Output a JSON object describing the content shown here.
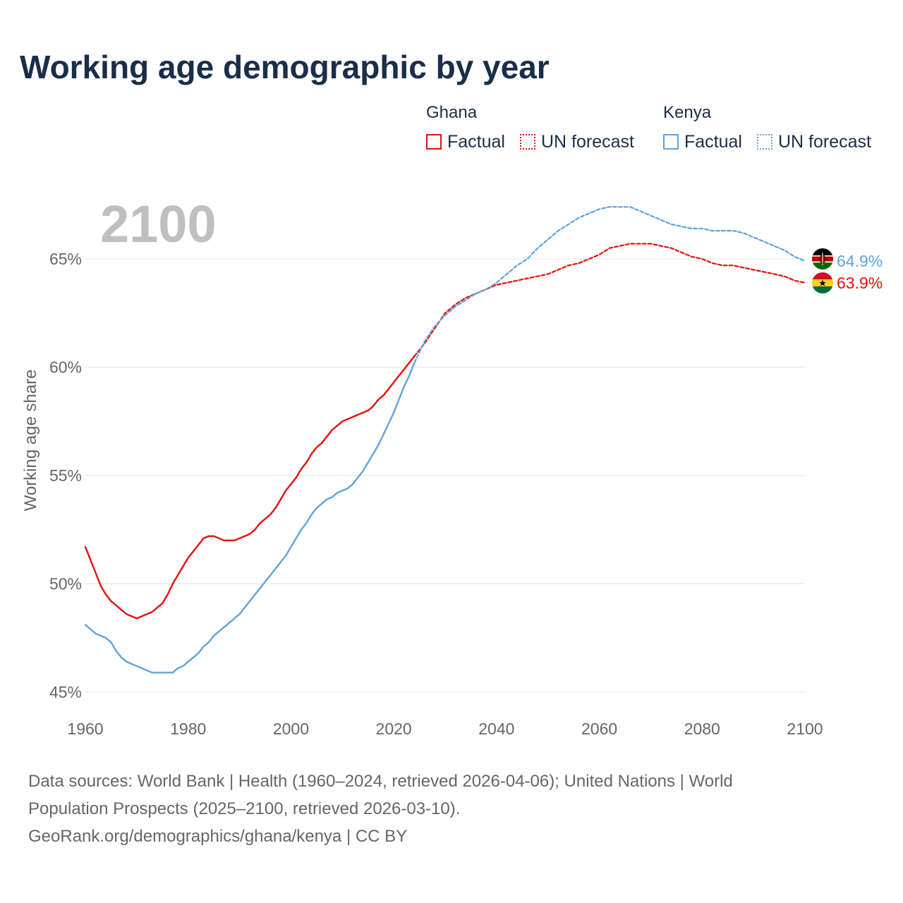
{
  "title": "Working age demographic by year",
  "legend": {
    "ghana_label": "Ghana",
    "kenya_label": "Kenya",
    "factual_label": "Factual",
    "forecast_label": "UN forecast"
  },
  "footer": {
    "line1": "Data sources: World Bank | Health (1960–2024, retrieved 2026-04-06); United Nations | World",
    "line2": "Population Prospects (2025–2100, retrieved 2026-03-10).",
    "line3": "GeoRank.org/demographics/ghana/kenya | CC BY"
  },
  "colors": {
    "ghana": "#e3120b",
    "kenya": "#5fa3e0",
    "title": "#1a2e4a",
    "axis_text": "#666666",
    "grid": "#e6e6e6",
    "year_watermark": "#bfbfbf"
  },
  "chart_data": {
    "type": "line",
    "title": "Working age demographic by year",
    "ylabel": "Working age share",
    "xlabel": "",
    "xlim": [
      1960,
      2100
    ],
    "ylim": [
      45,
      68
    ],
    "x_ticks": [
      1960,
      1980,
      2000,
      2020,
      2040,
      2060,
      2080,
      2100
    ],
    "x_tick_labels": [
      "1960",
      "1980",
      "2000",
      "2020",
      "2040",
      "2060",
      "2080",
      "2100"
    ],
    "y_ticks": [
      45,
      50,
      55,
      60,
      65
    ],
    "y_tick_labels": [
      "45%",
      "50%",
      "55%",
      "60%",
      "65%"
    ],
    "year_watermark": "2100",
    "series": [
      {
        "name": "Ghana",
        "role": "factual",
        "color": "#e3120b",
        "x": [
          1960,
          1961,
          1962,
          1963,
          1964,
          1965,
          1966,
          1967,
          1968,
          1969,
          1970,
          1971,
          1972,
          1973,
          1974,
          1975,
          1976,
          1977,
          1978,
          1979,
          1980,
          1981,
          1982,
          1983,
          1984,
          1985,
          1986,
          1987,
          1988,
          1989,
          1990,
          1991,
          1992,
          1993,
          1994,
          1995,
          1996,
          1997,
          1998,
          1999,
          2000,
          2001,
          2002,
          2003,
          2004,
          2005,
          2006,
          2007,
          2008,
          2009,
          2010,
          2011,
          2012,
          2013,
          2014,
          2015,
          2016,
          2017,
          2018,
          2019,
          2020,
          2021,
          2022,
          2023,
          2024
        ],
        "values": [
          51.7,
          51.1,
          50.5,
          49.9,
          49.5,
          49.2,
          49.0,
          48.8,
          48.6,
          48.5,
          48.4,
          48.5,
          48.6,
          48.7,
          48.9,
          49.1,
          49.5,
          50.0,
          50.4,
          50.8,
          51.2,
          51.5,
          51.8,
          52.1,
          52.2,
          52.2,
          52.1,
          52.0,
          52.0,
          52.0,
          52.1,
          52.2,
          52.3,
          52.5,
          52.8,
          53.0,
          53.2,
          53.5,
          53.9,
          54.3,
          54.6,
          54.9,
          55.3,
          55.6,
          56.0,
          56.3,
          56.5,
          56.8,
          57.1,
          57.3,
          57.5,
          57.6,
          57.7,
          57.8,
          57.9,
          58.0,
          58.2,
          58.5,
          58.7,
          59.0,
          59.3,
          59.6,
          59.9,
          60.2,
          60.5
        ]
      },
      {
        "name": "Ghana",
        "role": "UN forecast",
        "color": "#e3120b",
        "x": [
          2024,
          2026,
          2028,
          2030,
          2032,
          2034,
          2036,
          2038,
          2040,
          2042,
          2044,
          2046,
          2048,
          2050,
          2052,
          2054,
          2056,
          2058,
          2060,
          2062,
          2064,
          2066,
          2068,
          2070,
          2072,
          2074,
          2076,
          2078,
          2080,
          2082,
          2084,
          2086,
          2088,
          2090,
          2092,
          2094,
          2096,
          2098,
          2100
        ],
        "values": [
          60.5,
          61.1,
          61.8,
          62.5,
          62.9,
          63.2,
          63.4,
          63.6,
          63.8,
          63.9,
          64.0,
          64.1,
          64.2,
          64.3,
          64.5,
          64.7,
          64.8,
          65.0,
          65.2,
          65.5,
          65.6,
          65.7,
          65.7,
          65.7,
          65.6,
          65.5,
          65.3,
          65.1,
          65.0,
          64.8,
          64.7,
          64.7,
          64.6,
          64.5,
          64.4,
          64.3,
          64.2,
          64.0,
          63.9
        ]
      },
      {
        "name": "Kenya",
        "role": "factual",
        "color": "#5fa3e0",
        "x": [
          1960,
          1961,
          1962,
          1963,
          1964,
          1965,
          1966,
          1967,
          1968,
          1969,
          1970,
          1971,
          1972,
          1973,
          1974,
          1975,
          1976,
          1977,
          1978,
          1979,
          1980,
          1981,
          1982,
          1983,
          1984,
          1985,
          1986,
          1987,
          1988,
          1989,
          1990,
          1991,
          1992,
          1993,
          1994,
          1995,
          1996,
          1997,
          1998,
          1999,
          2000,
          2001,
          2002,
          2003,
          2004,
          2005,
          2006,
          2007,
          2008,
          2009,
          2010,
          2011,
          2012,
          2013,
          2014,
          2015,
          2016,
          2017,
          2018,
          2019,
          2020,
          2021,
          2022,
          2023,
          2024
        ],
        "values": [
          48.1,
          47.9,
          47.7,
          47.6,
          47.5,
          47.3,
          46.9,
          46.6,
          46.4,
          46.3,
          46.2,
          46.1,
          46.0,
          45.9,
          45.9,
          45.9,
          45.9,
          45.9,
          46.1,
          46.2,
          46.4,
          46.6,
          46.8,
          47.1,
          47.3,
          47.6,
          47.8,
          48.0,
          48.2,
          48.4,
          48.6,
          48.9,
          49.2,
          49.5,
          49.8,
          50.1,
          50.4,
          50.7,
          51.0,
          51.3,
          51.7,
          52.1,
          52.5,
          52.8,
          53.2,
          53.5,
          53.7,
          53.9,
          54.0,
          54.2,
          54.3,
          54.4,
          54.6,
          54.9,
          55.2,
          55.6,
          56.0,
          56.4,
          56.9,
          57.4,
          57.9,
          58.5,
          59.1,
          59.6,
          60.2
        ]
      },
      {
        "name": "Kenya",
        "role": "UN forecast",
        "color": "#5fa3e0",
        "x": [
          2024,
          2026,
          2028,
          2030,
          2032,
          2034,
          2036,
          2038,
          2040,
          2042,
          2044,
          2046,
          2048,
          2050,
          2052,
          2054,
          2056,
          2058,
          2060,
          2062,
          2064,
          2066,
          2068,
          2070,
          2072,
          2074,
          2076,
          2078,
          2080,
          2082,
          2084,
          2086,
          2088,
          2090,
          2092,
          2094,
          2096,
          2098,
          2100
        ],
        "values": [
          60.2,
          61.2,
          61.9,
          62.4,
          62.8,
          63.1,
          63.4,
          63.6,
          63.9,
          64.3,
          64.7,
          65.0,
          65.5,
          65.9,
          66.3,
          66.6,
          66.9,
          67.1,
          67.3,
          67.4,
          67.4,
          67.4,
          67.2,
          67.0,
          66.8,
          66.6,
          66.5,
          66.4,
          66.4,
          66.3,
          66.3,
          66.3,
          66.2,
          66.0,
          65.8,
          65.6,
          65.4,
          65.1,
          64.9
        ]
      }
    ],
    "end_labels": [
      {
        "country": "Kenya",
        "text": "64.9%",
        "value": 64.9
      },
      {
        "country": "Ghana",
        "text": "63.9%",
        "value": 63.9
      }
    ]
  }
}
